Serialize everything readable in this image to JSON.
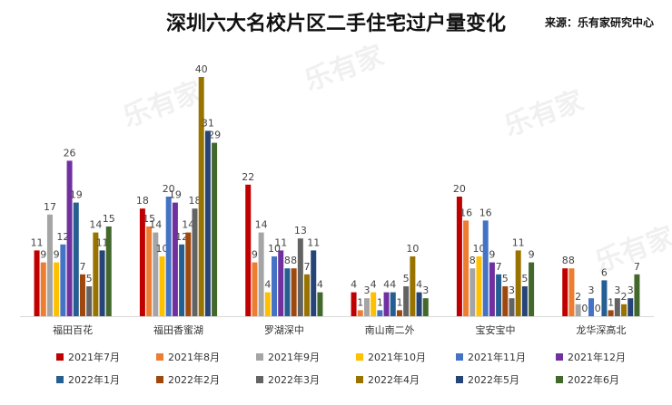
{
  "chart_data": {
    "type": "bar",
    "title": "深圳六大名校片区二手住宅过户量变化",
    "source": "来源：乐有家研究中心",
    "watermark": "乐有家",
    "categories": [
      "福田百花",
      "福田香蜜湖",
      "罗湖深中",
      "南山南二外",
      "宝安宝中",
      "龙华深高北"
    ],
    "ylim": [
      0,
      40
    ],
    "series": [
      {
        "name": "2021年7月",
        "color": "#c00000",
        "values": [
          11,
          18,
          22,
          4,
          20,
          8
        ]
      },
      {
        "name": "2021年8月",
        "color": "#ed7d31",
        "values": [
          9,
          15,
          9,
          1,
          16,
          8
        ]
      },
      {
        "name": "2021年9月",
        "color": "#a5a5a5",
        "values": [
          17,
          14,
          14,
          3,
          8,
          2
        ]
      },
      {
        "name": "2021年10月",
        "color": "#ffc000",
        "values": [
          9,
          10,
          4,
          4,
          10,
          0
        ]
      },
      {
        "name": "2021年11月",
        "color": "#4472c4",
        "values": [
          12,
          20,
          10,
          1,
          16,
          3
        ]
      },
      {
        "name": "2021年12月",
        "color": "#7030a0",
        "values": [
          26,
          19,
          11,
          4,
          9,
          0
        ]
      },
      {
        "name": "2022年1月",
        "color": "#255e91",
        "values": [
          19,
          12,
          8,
          4,
          7,
          6
        ]
      },
      {
        "name": "2022年2月",
        "color": "#9e480e",
        "values": [
          7,
          14,
          8,
          1,
          5,
          1
        ]
      },
      {
        "name": "2022年3月",
        "color": "#636363",
        "values": [
          5,
          18,
          13,
          5,
          3,
          3
        ]
      },
      {
        "name": "2022年4月",
        "color": "#997300",
        "values": [
          14,
          40,
          7,
          10,
          11,
          2
        ]
      },
      {
        "name": "2022年5月",
        "color": "#264478",
        "values": [
          11,
          31,
          11,
          4,
          5,
          3
        ]
      },
      {
        "name": "2022年6月",
        "color": "#43682b",
        "values": [
          15,
          29,
          4,
          3,
          9,
          7
        ]
      }
    ]
  }
}
